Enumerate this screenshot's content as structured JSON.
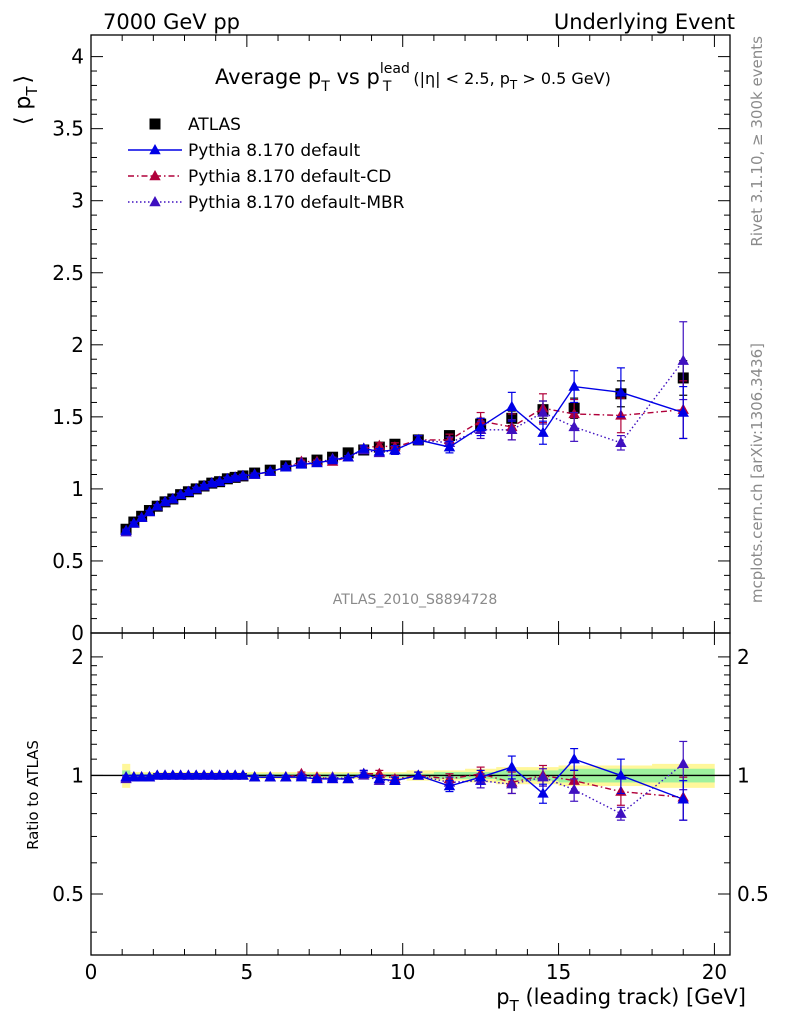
{
  "header": {
    "left": "7000 GeV pp",
    "right": "Underlying Event"
  },
  "side_text": {
    "rivet": "Rivet 3.1.10, ≥ 300k events",
    "mcplots": "mcplots.cern.ch [arXiv:1306.3436]"
  },
  "title": {
    "main": "Average p",
    "sub_T": "T",
    "vs": " vs p",
    "sup_lead": "lead",
    "sub_T2": "T",
    "cut": "(|η| < 2.5, p",
    "cut_sub": "T",
    "cut_end": " > 0.5 GeV)"
  },
  "analysis_tag": "ATLAS_2010_S8894728",
  "colors": {
    "atlas": "#000000",
    "default": "#0000e6",
    "cd": "#b0003a",
    "mbr": "#3f10c0",
    "band_yellow": "#fff79a",
    "band_green": "#9ef19e"
  },
  "chart_data": [
    {
      "type": "scatter",
      "panel": "main",
      "ylabel": "⟨ p",
      "ylabel_sub": "T",
      "ylabel_end": "⟩",
      "xlim": [
        0,
        20.5
      ],
      "ylim": [
        0,
        4.15
      ],
      "yticks": [
        0,
        0.5,
        1,
        1.5,
        2,
        2.5,
        3,
        3.5,
        4
      ],
      "ytick_labels": [
        "0",
        "0.5",
        "1",
        "1.5",
        "2",
        "2.5",
        "3",
        "3.5",
        "4"
      ],
      "x": [
        1.125,
        1.375,
        1.625,
        1.875,
        2.125,
        2.375,
        2.625,
        2.875,
        3.125,
        3.375,
        3.625,
        3.875,
        4.125,
        4.375,
        4.625,
        4.875,
        5.25,
        5.75,
        6.25,
        6.75,
        7.25,
        7.75,
        8.25,
        8.75,
        9.25,
        9.75,
        10.5,
        11.5,
        12.5,
        13.5,
        14.5,
        15.5,
        17.0,
        19.0
      ],
      "series": [
        {
          "name": "ATLAS",
          "style": "square",
          "values": [
            0.72,
            0.77,
            0.81,
            0.85,
            0.88,
            0.91,
            0.93,
            0.96,
            0.98,
            1.0,
            1.02,
            1.04,
            1.05,
            1.07,
            1.08,
            1.09,
            1.11,
            1.13,
            1.16,
            1.18,
            1.2,
            1.22,
            1.25,
            1.27,
            1.29,
            1.31,
            1.34,
            1.37,
            1.45,
            1.49,
            1.55,
            1.56,
            1.66,
            1.77
          ],
          "errors": [
            0.01,
            0.01,
            0.01,
            0.01,
            0.01,
            0.01,
            0.01,
            0.01,
            0.01,
            0.01,
            0.01,
            0.01,
            0.01,
            0.01,
            0.01,
            0.01,
            0.01,
            0.01,
            0.01,
            0.01,
            0.01,
            0.01,
            0.01,
            0.01,
            0.02,
            0.02,
            0.02,
            0.03,
            0.04,
            0.05,
            0.06,
            0.07,
            0.09,
            0.12
          ]
        },
        {
          "name": "Pythia 8.170 default",
          "style": "solid",
          "values": [
            0.71,
            0.76,
            0.8,
            0.84,
            0.88,
            0.91,
            0.93,
            0.96,
            0.98,
            1.0,
            1.02,
            1.04,
            1.05,
            1.07,
            1.08,
            1.09,
            1.1,
            1.12,
            1.15,
            1.17,
            1.18,
            1.2,
            1.22,
            1.28,
            1.26,
            1.27,
            1.34,
            1.29,
            1.43,
            1.57,
            1.39,
            1.71,
            1.67,
            1.53
          ],
          "errors": [
            0.01,
            0.01,
            0.01,
            0.01,
            0.01,
            0.01,
            0.01,
            0.01,
            0.01,
            0.01,
            0.01,
            0.01,
            0.01,
            0.01,
            0.01,
            0.01,
            0.01,
            0.01,
            0.01,
            0.01,
            0.01,
            0.01,
            0.01,
            0.02,
            0.02,
            0.03,
            0.03,
            0.04,
            0.06,
            0.1,
            0.08,
            0.11,
            0.17,
            0.18
          ]
        },
        {
          "name": "Pythia 8.170 default-CD",
          "style": "dashdot",
          "values": [
            0.71,
            0.76,
            0.8,
            0.84,
            0.88,
            0.91,
            0.93,
            0.96,
            0.98,
            1.0,
            1.02,
            1.04,
            1.05,
            1.07,
            1.08,
            1.09,
            1.1,
            1.12,
            1.15,
            1.19,
            1.19,
            1.19,
            1.22,
            1.28,
            1.3,
            1.29,
            1.34,
            1.34,
            1.47,
            1.43,
            1.56,
            1.52,
            1.51,
            1.55
          ],
          "errors": [
            0.01,
            0.01,
            0.01,
            0.01,
            0.01,
            0.01,
            0.01,
            0.01,
            0.01,
            0.01,
            0.01,
            0.01,
            0.01,
            0.01,
            0.01,
            0.01,
            0.01,
            0.01,
            0.01,
            0.01,
            0.01,
            0.01,
            0.01,
            0.02,
            0.02,
            0.03,
            0.03,
            0.04,
            0.06,
            0.09,
            0.1,
            0.1,
            0.12,
            0.2
          ]
        },
        {
          "name": "Pythia 8.170 default-MBR",
          "style": "dotted",
          "values": [
            0.7,
            0.76,
            0.8,
            0.84,
            0.88,
            0.91,
            0.93,
            0.96,
            0.98,
            1.0,
            1.02,
            1.04,
            1.05,
            1.07,
            1.08,
            1.09,
            1.1,
            1.12,
            1.15,
            1.18,
            1.18,
            1.21,
            1.22,
            1.27,
            1.25,
            1.27,
            1.34,
            1.32,
            1.41,
            1.41,
            1.53,
            1.43,
            1.32,
            1.89
          ],
          "errors": [
            0.01,
            0.01,
            0.01,
            0.01,
            0.01,
            0.01,
            0.01,
            0.01,
            0.01,
            0.01,
            0.01,
            0.01,
            0.01,
            0.01,
            0.01,
            0.01,
            0.01,
            0.01,
            0.01,
            0.01,
            0.01,
            0.01,
            0.01,
            0.02,
            0.02,
            0.03,
            0.03,
            0.04,
            0.06,
            0.07,
            0.08,
            0.1,
            0.05,
            0.27
          ]
        }
      ]
    },
    {
      "type": "scatter",
      "panel": "ratio",
      "ylabel": "Ratio to ATLAS",
      "xlabel": "p",
      "xlabel_sub": "T",
      "xlabel_end": " (leading track) [GeV]",
      "xlim": [
        0,
        20.5
      ],
      "ylim": [
        0.35,
        2.3
      ],
      "xticks": [
        0,
        5,
        10,
        15,
        20
      ],
      "xtick_labels": [
        "0",
        "5",
        "10",
        "15",
        "20"
      ],
      "yticks": [
        0.5,
        1,
        2
      ],
      "ytick_labels": [
        "0.5",
        "1",
        "2"
      ],
      "ytick_labels_right": [
        "0.5",
        "1",
        "2"
      ],
      "band_yellow_halfwidth": [
        0.07,
        0.02,
        0.02,
        0.02,
        0.02,
        0.02,
        0.02,
        0.02,
        0.02,
        0.02,
        0.02,
        0.02,
        0.02,
        0.02,
        0.02,
        0.02,
        0.02,
        0.02,
        0.02,
        0.02,
        0.02,
        0.02,
        0.02,
        0.02,
        0.02,
        0.02,
        0.03,
        0.03,
        0.04,
        0.05,
        0.05,
        0.06,
        0.06,
        0.07
      ],
      "band_green_halfwidth": [
        0.03,
        0.01,
        0.01,
        0.01,
        0.01,
        0.01,
        0.01,
        0.01,
        0.01,
        0.01,
        0.01,
        0.01,
        0.01,
        0.01,
        0.01,
        0.01,
        0.01,
        0.01,
        0.01,
        0.01,
        0.01,
        0.01,
        0.01,
        0.01,
        0.01,
        0.01,
        0.01,
        0.02,
        0.02,
        0.03,
        0.03,
        0.04,
        0.04,
        0.04
      ],
      "series": [
        {
          "name": "Pythia 8.170 default",
          "values": [
            0.99,
            0.99,
            0.99,
            0.99,
            1.0,
            1.0,
            1.0,
            1.0,
            1.0,
            1.0,
            1.0,
            1.0,
            1.0,
            1.0,
            1.0,
            1.0,
            0.99,
            0.99,
            0.99,
            0.99,
            0.98,
            0.98,
            0.98,
            1.01,
            0.98,
            0.97,
            1.0,
            0.94,
            0.99,
            1.05,
            0.9,
            1.1,
            1.0,
            0.87
          ],
          "errors": [
            0.01,
            0.01,
            0.01,
            0.01,
            0.01,
            0.01,
            0.01,
            0.01,
            0.01,
            0.01,
            0.01,
            0.01,
            0.01,
            0.01,
            0.01,
            0.01,
            0.01,
            0.01,
            0.01,
            0.01,
            0.01,
            0.01,
            0.01,
            0.02,
            0.02,
            0.02,
            0.02,
            0.03,
            0.04,
            0.07,
            0.05,
            0.07,
            0.1,
            0.1
          ]
        },
        {
          "name": "Pythia 8.170 default-CD",
          "values": [
            0.99,
            0.99,
            0.99,
            0.99,
            1.0,
            1.0,
            1.0,
            1.0,
            1.0,
            1.0,
            1.0,
            1.0,
            1.0,
            1.0,
            1.0,
            1.0,
            0.99,
            0.99,
            0.99,
            1.01,
            0.99,
            0.98,
            0.98,
            1.01,
            1.01,
            0.98,
            1.0,
            0.98,
            1.01,
            0.96,
            1.0,
            0.97,
            0.91,
            0.88
          ],
          "errors": [
            0.01,
            0.01,
            0.01,
            0.01,
            0.01,
            0.01,
            0.01,
            0.01,
            0.01,
            0.01,
            0.01,
            0.01,
            0.01,
            0.01,
            0.01,
            0.01,
            0.01,
            0.01,
            0.01,
            0.01,
            0.01,
            0.01,
            0.01,
            0.02,
            0.02,
            0.02,
            0.02,
            0.03,
            0.04,
            0.06,
            0.06,
            0.06,
            0.07,
            0.11
          ]
        },
        {
          "name": "Pythia 8.170 default-MBR",
          "values": [
            0.98,
            0.99,
            0.99,
            0.99,
            1.0,
            1.0,
            1.0,
            1.0,
            1.0,
            1.0,
            1.0,
            1.0,
            1.0,
            1.0,
            1.0,
            1.0,
            0.99,
            0.99,
            0.99,
            1.0,
            0.98,
            0.99,
            0.98,
            1.0,
            0.97,
            0.97,
            1.0,
            0.96,
            0.97,
            0.95,
            0.99,
            0.92,
            0.8,
            1.07
          ],
          "errors": [
            0.01,
            0.01,
            0.01,
            0.01,
            0.01,
            0.01,
            0.01,
            0.01,
            0.01,
            0.01,
            0.01,
            0.01,
            0.01,
            0.01,
            0.01,
            0.01,
            0.01,
            0.01,
            0.01,
            0.01,
            0.01,
            0.01,
            0.01,
            0.02,
            0.02,
            0.02,
            0.02,
            0.03,
            0.04,
            0.05,
            0.05,
            0.06,
            0.03,
            0.15
          ]
        }
      ]
    }
  ]
}
